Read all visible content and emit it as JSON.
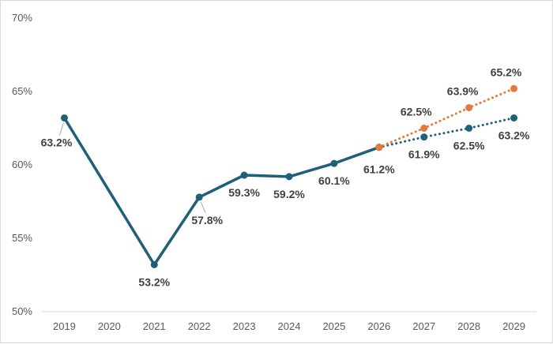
{
  "chart_data": {
    "type": "line",
    "categories": [
      "2019",
      "2020",
      "2021",
      "2022",
      "2023",
      "2024",
      "2025",
      "2026",
      "2027",
      "2028",
      "2029"
    ],
    "ylim": [
      50,
      70
    ],
    "yticks": [
      50,
      55,
      60,
      65,
      70
    ],
    "ytick_labels": [
      "50%",
      "55%",
      "60%",
      "65%",
      "70%"
    ],
    "grid": false,
    "legend": "none",
    "series": [
      {
        "style": "solid",
        "color": "#1f5f7a",
        "points": [
          {
            "x": "2019",
            "y": 63.2,
            "label": "63.2%"
          },
          {
            "x": "2021",
            "y": 53.2,
            "label": "53.2%"
          },
          {
            "x": "2022",
            "y": 57.8,
            "label": "57.8%"
          },
          {
            "x": "2023",
            "y": 59.3,
            "label": "59.3%"
          },
          {
            "x": "2024",
            "y": 59.2,
            "label": "59.2%"
          },
          {
            "x": "2025",
            "y": 60.1,
            "label": "60.1%"
          },
          {
            "x": "2026",
            "y": 61.2,
            "label": "61.2%"
          }
        ]
      },
      {
        "style": "dotted",
        "color": "#1f5f7a",
        "points": [
          {
            "x": "2026",
            "y": 61.2,
            "label": ""
          },
          {
            "x": "2027",
            "y": 61.9,
            "label": "61.9%"
          },
          {
            "x": "2028",
            "y": 62.5,
            "label": "62.5%"
          },
          {
            "x": "2029",
            "y": 63.2,
            "label": "63.2%"
          }
        ]
      },
      {
        "style": "dotted",
        "color": "#e07b39",
        "points": [
          {
            "x": "2026",
            "y": 61.2,
            "label": ""
          },
          {
            "x": "2027",
            "y": 62.5,
            "label": "62.5%"
          },
          {
            "x": "2028",
            "y": 63.9,
            "label": "63.9%"
          },
          {
            "x": "2029",
            "y": 65.2,
            "label": "65.2%"
          }
        ]
      }
    ]
  }
}
